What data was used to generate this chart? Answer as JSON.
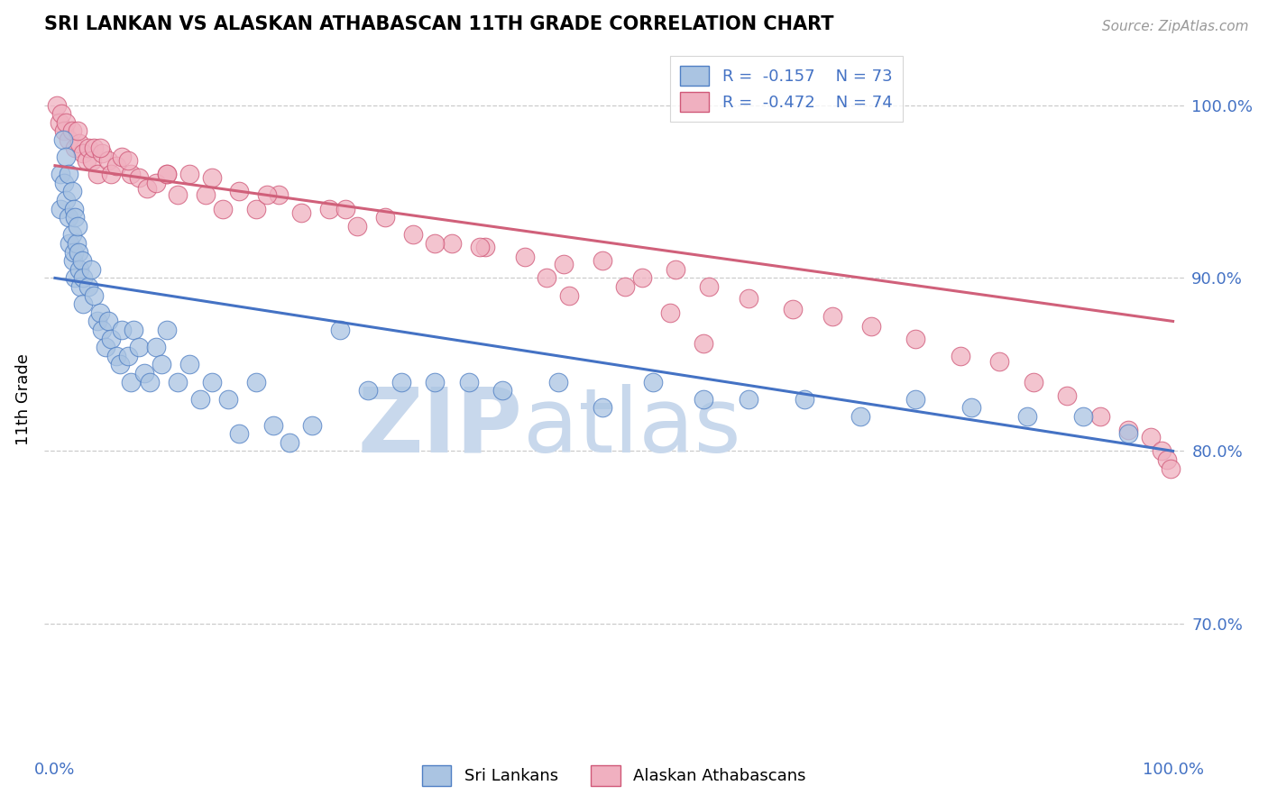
{
  "title": "SRI LANKAN VS ALASKAN ATHABASCAN 11TH GRADE CORRELATION CHART",
  "source": "Source: ZipAtlas.com",
  "ylabel": "11th Grade",
  "xlim": [
    -0.01,
    1.01
  ],
  "ylim": [
    0.625,
    1.035
  ],
  "yticks": [
    0.7,
    0.8,
    0.9,
    1.0
  ],
  "ytick_labels": [
    "70.0%",
    "80.0%",
    "90.0%",
    "100.0%"
  ],
  "blue_color": "#aac4e2",
  "blue_edge_color": "#4f7fc4",
  "pink_color": "#f0b0c0",
  "pink_edge_color": "#d05878",
  "blue_line_color": "#4472c4",
  "pink_line_color": "#d0607a",
  "watermark_zip": "ZIP",
  "watermark_atlas": "atlas",
  "blue_x": [
    0.005,
    0.005,
    0.007,
    0.008,
    0.01,
    0.01,
    0.012,
    0.012,
    0.013,
    0.015,
    0.015,
    0.016,
    0.017,
    0.017,
    0.018,
    0.018,
    0.019,
    0.02,
    0.021,
    0.022,
    0.023,
    0.024,
    0.025,
    0.025,
    0.03,
    0.032,
    0.035,
    0.038,
    0.04,
    0.042,
    0.045,
    0.048,
    0.05,
    0.055,
    0.058,
    0.06,
    0.065,
    0.068,
    0.07,
    0.075,
    0.08,
    0.085,
    0.09,
    0.095,
    0.1,
    0.11,
    0.12,
    0.13,
    0.14,
    0.155,
    0.165,
    0.18,
    0.195,
    0.21,
    0.23,
    0.255,
    0.28,
    0.31,
    0.34,
    0.37,
    0.4,
    0.45,
    0.49,
    0.535,
    0.58,
    0.62,
    0.67,
    0.72,
    0.77,
    0.82,
    0.87,
    0.92,
    0.96
  ],
  "blue_y": [
    0.96,
    0.94,
    0.98,
    0.955,
    0.97,
    0.945,
    0.96,
    0.935,
    0.92,
    0.95,
    0.925,
    0.91,
    0.94,
    0.915,
    0.935,
    0.9,
    0.92,
    0.93,
    0.915,
    0.905,
    0.895,
    0.91,
    0.9,
    0.885,
    0.895,
    0.905,
    0.89,
    0.875,
    0.88,
    0.87,
    0.86,
    0.875,
    0.865,
    0.855,
    0.85,
    0.87,
    0.855,
    0.84,
    0.87,
    0.86,
    0.845,
    0.84,
    0.86,
    0.85,
    0.87,
    0.84,
    0.85,
    0.83,
    0.84,
    0.83,
    0.81,
    0.84,
    0.815,
    0.805,
    0.815,
    0.87,
    0.835,
    0.84,
    0.84,
    0.84,
    0.835,
    0.84,
    0.825,
    0.84,
    0.83,
    0.83,
    0.83,
    0.82,
    0.83,
    0.825,
    0.82,
    0.82,
    0.81
  ],
  "pink_x": [
    0.002,
    0.004,
    0.006,
    0.008,
    0.01,
    0.012,
    0.015,
    0.018,
    0.022,
    0.025,
    0.028,
    0.03,
    0.033,
    0.035,
    0.038,
    0.042,
    0.048,
    0.05,
    0.055,
    0.06,
    0.068,
    0.075,
    0.082,
    0.09,
    0.1,
    0.11,
    0.12,
    0.135,
    0.15,
    0.165,
    0.18,
    0.2,
    0.22,
    0.245,
    0.27,
    0.295,
    0.32,
    0.355,
    0.385,
    0.42,
    0.455,
    0.49,
    0.525,
    0.555,
    0.585,
    0.62,
    0.66,
    0.695,
    0.73,
    0.77,
    0.81,
    0.845,
    0.875,
    0.905,
    0.935,
    0.96,
    0.98,
    0.99,
    0.995,
    0.998,
    0.51,
    0.55,
    0.58,
    0.44,
    0.46,
    0.38,
    0.34,
    0.26,
    0.19,
    0.14,
    0.1,
    0.065,
    0.04,
    0.02
  ],
  "pink_y": [
    1.0,
    0.99,
    0.995,
    0.985,
    0.99,
    0.98,
    0.985,
    0.975,
    0.978,
    0.972,
    0.968,
    0.975,
    0.968,
    0.975,
    0.96,
    0.972,
    0.968,
    0.96,
    0.965,
    0.97,
    0.96,
    0.958,
    0.952,
    0.955,
    0.96,
    0.948,
    0.96,
    0.948,
    0.94,
    0.95,
    0.94,
    0.948,
    0.938,
    0.94,
    0.93,
    0.935,
    0.925,
    0.92,
    0.918,
    0.912,
    0.908,
    0.91,
    0.9,
    0.905,
    0.895,
    0.888,
    0.882,
    0.878,
    0.872,
    0.865,
    0.855,
    0.852,
    0.84,
    0.832,
    0.82,
    0.812,
    0.808,
    0.8,
    0.795,
    0.79,
    0.895,
    0.88,
    0.862,
    0.9,
    0.89,
    0.918,
    0.92,
    0.94,
    0.948,
    0.958,
    0.96,
    0.968,
    0.975,
    0.985
  ],
  "blue_trend_x": [
    0.0,
    1.0
  ],
  "blue_trend_y": [
    0.9,
    0.8
  ],
  "pink_trend_x": [
    0.0,
    1.0
  ],
  "pink_trend_y": [
    0.965,
    0.875
  ]
}
